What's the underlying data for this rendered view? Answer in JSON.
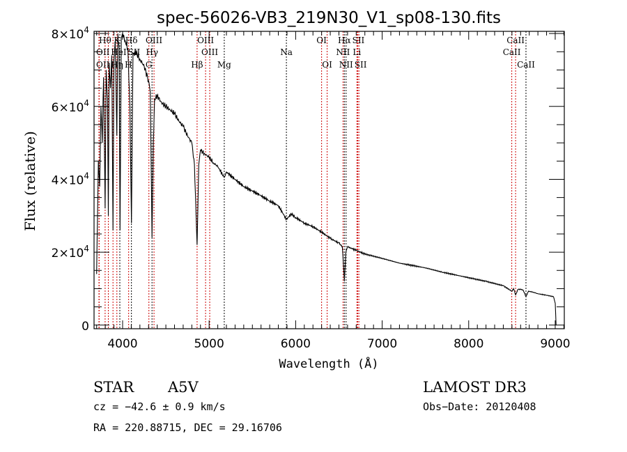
{
  "chart_data": {
    "type": "line",
    "title": "spec-56026-VB3_219N30_V1_sp08-130.fits",
    "xlabel": "Wavelength (Å)",
    "ylabel": "Flux (relative)",
    "xlim": [
      3670,
      9105
    ],
    "ylim": [
      -1000,
      80600
    ],
    "xticks": [
      4000,
      5000,
      6000,
      7000,
      8000,
      9000
    ],
    "xtick_labels": [
      "4000",
      "5000",
      "6000",
      "7000",
      "8000",
      "9000"
    ],
    "yticks": [
      0,
      20000,
      40000,
      60000,
      80000
    ],
    "ytick_labels": [
      {
        "mant": "0",
        "exp": ""
      },
      {
        "mant": "2×10",
        "exp": "4"
      },
      {
        "mant": "4×10",
        "exp": "4"
      },
      {
        "mant": "6×10",
        "exp": "4"
      },
      {
        "mant": "8×10",
        "exp": "4"
      }
    ],
    "grid": false,
    "series": [
      {
        "name": "spectrum",
        "color": "#000000",
        "x": [
          3700,
          3710,
          3720,
          3735,
          3750,
          3765,
          3780,
          3798,
          3810,
          3825,
          3835,
          3845,
          3860,
          3875,
          3889,
          3900,
          3915,
          3933,
          3945,
          3960,
          3970,
          3985,
          4000,
          4030,
          4060,
          4085,
          4102,
          4120,
          4150,
          4200,
          4250,
          4300,
          4320,
          4340,
          4355,
          4370,
          4400,
          4450,
          4500,
          4550,
          4600,
          4650,
          4700,
          4750,
          4800,
          4830,
          4861,
          4880,
          4900,
          4950,
          5000,
          5050,
          5100,
          5175,
          5200,
          5300,
          5400,
          5500,
          5600,
          5700,
          5800,
          5893,
          5950,
          6000,
          6100,
          6200,
          6300,
          6400,
          6500,
          6540,
          6563,
          6580,
          6600,
          6700,
          6800,
          7000,
          7200,
          7500,
          7700,
          8000,
          8200,
          8400,
          8498,
          8520,
          8542,
          8570,
          8600,
          8630,
          8662,
          8690,
          8750,
          8800,
          8900,
          8980,
          9000,
          9010
        ],
        "y": [
          14000,
          30000,
          45000,
          38000,
          60000,
          50000,
          68000,
          32000,
          70000,
          62000,
          30000,
          72000,
          65000,
          74000,
          26000,
          73000,
          78000,
          52000,
          80000,
          76000,
          26000,
          79000,
          80000,
          78000,
          76000,
          60000,
          28000,
          74000,
          75000,
          73000,
          71000,
          67000,
          64000,
          24000,
          50000,
          62000,
          63000,
          61000,
          60000,
          59000,
          58000,
          56000,
          54500,
          52000,
          50000,
          44000,
          22000,
          44000,
          48000,
          47000,
          46000,
          44500,
          43500,
          40500,
          42000,
          40000,
          38000,
          36800,
          35500,
          34000,
          32800,
          29000,
          30500,
          29500,
          28000,
          27000,
          25500,
          23800,
          22500,
          21500,
          12000,
          20000,
          21500,
          20500,
          19500,
          18300,
          17000,
          15700,
          14500,
          13000,
          12000,
          10800,
          9300,
          10000,
          8300,
          9800,
          9800,
          9600,
          7800,
          9300,
          9000,
          8600,
          8200,
          7800,
          6000,
          0
        ]
      }
    ],
    "lines": [
      {
        "label": "Hθ",
        "wl": 3798,
        "row": 0,
        "color": "#cc0000"
      },
      {
        "label": "K",
        "wl": 3934,
        "row": 0,
        "color": "#cc0000"
      },
      {
        "label": "Hδ",
        "wl": 4102,
        "row": 0,
        "color": "#000000"
      },
      {
        "label": "OIII",
        "wl": 4363,
        "row": 0,
        "color": "#cc0000"
      },
      {
        "label": "OIII",
        "wl": 4959,
        "row": 0,
        "color": "#cc0000"
      },
      {
        "label": "OI",
        "wl": 6300,
        "row": 0,
        "color": "#cc0000"
      },
      {
        "label": "Hα",
        "wl": 6563,
        "row": 0,
        "color": "#000000"
      },
      {
        "label": "SII",
        "wl": 6717,
        "row": 0,
        "color": "#cc0000"
      },
      {
        "label": "CaII",
        "wl": 8542,
        "row": 0,
        "color": "#cc0000"
      },
      {
        "label": "OII",
        "wl": 3727,
        "row": 1,
        "color": "#cc0000"
      },
      {
        "label": "HeI",
        "wl": 3889,
        "row": 1,
        "color": "#cc0000"
      },
      {
        "label": "SII",
        "wl": 4070,
        "row": 1,
        "color": "#cc0000"
      },
      {
        "label": "Hγ",
        "wl": 4340,
        "row": 1,
        "color": "#000000"
      },
      {
        "label": "OIII",
        "wl": 5007,
        "row": 1,
        "color": "#cc0000"
      },
      {
        "label": "Na",
        "wl": 5893,
        "row": 1,
        "color": "#000000"
      },
      {
        "label": "NII",
        "wl": 6548,
        "row": 1,
        "color": "#cc0000"
      },
      {
        "label": "Li",
        "wl": 6708,
        "row": 1,
        "color": "#cc0000"
      },
      {
        "label": "CaII",
        "wl": 8498,
        "row": 1,
        "color": "#cc0000"
      },
      {
        "label": "OII",
        "wl": 3729,
        "row": 2,
        "color": "#cc0000"
      },
      {
        "label": "Hη",
        "wl": 3835,
        "row": 2,
        "color": "#cc0000"
      },
      {
        "label": "H",
        "wl": 3968,
        "row": 2,
        "color": "#000000"
      },
      {
        "label": "G",
        "wl": 4304,
        "row": 2,
        "color": "#cc0000"
      },
      {
        "label": "Hβ",
        "wl": 4861,
        "row": 2,
        "color": "#cc0000"
      },
      {
        "label": "Mg",
        "wl": 5175,
        "row": 2,
        "color": "#000000"
      },
      {
        "label": "OI",
        "wl": 6364,
        "row": 2,
        "color": "#cc0000"
      },
      {
        "label": "NII",
        "wl": 6583,
        "row": 2,
        "color": "#000000"
      },
      {
        "label": "SII",
        "wl": 6731,
        "row": 2,
        "color": "#cc0000"
      },
      {
        "label": "CaII",
        "wl": 8662,
        "row": 2,
        "color": "#000000"
      }
    ]
  },
  "info": {
    "object_class": "STAR",
    "subclass": "A5V",
    "cz": "cz = −42.6 ± 0.9 km/s",
    "coords": "RA = 220.88715, DEC =  29.16706",
    "survey": "LAMOST DR3",
    "obs_date": "Obs−Date: 20120408"
  }
}
